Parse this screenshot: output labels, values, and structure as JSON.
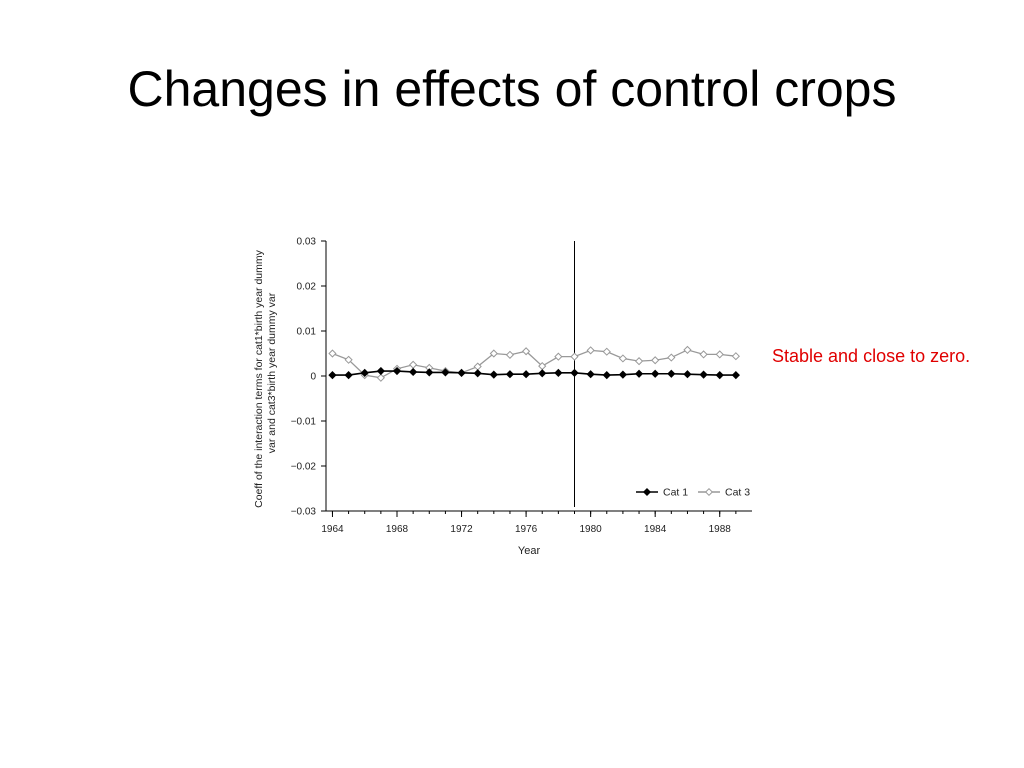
{
  "slide": {
    "title": "Changes in effects of control crops",
    "annotation": "Stable and close to zero."
  },
  "chart_data": {
    "type": "line",
    "title": "",
    "xlabel": "Year",
    "ylabel_lines": [
      "Coeff of the interaction terms for cat1*birth year dummy",
      "var and cat3*birth year dummy var"
    ],
    "ylim": [
      -0.03,
      0.03
    ],
    "xlim": [
      1963.6,
      1990
    ],
    "yticks": [
      {
        "value": 0.03,
        "label": "0.03"
      },
      {
        "value": 0.02,
        "label": "0.02"
      },
      {
        "value": 0.01,
        "label": "0.01"
      },
      {
        "value": 0,
        "label": "0"
      },
      {
        "value": -0.01,
        "label": "−0.01"
      },
      {
        "value": -0.02,
        "label": "−0.02"
      },
      {
        "value": -0.03,
        "label": "−0.03"
      }
    ],
    "xticks": [
      {
        "value": 1964,
        "label": "1964"
      },
      {
        "value": 1968,
        "label": "1968"
      },
      {
        "value": 1972,
        "label": "1972"
      },
      {
        "value": 1976,
        "label": "1976"
      },
      {
        "value": 1980,
        "label": "1980"
      },
      {
        "value": 1984,
        "label": "1984"
      },
      {
        "value": 1988,
        "label": "1988"
      }
    ],
    "vertical_line_x": 1979,
    "grid": false,
    "legend_position": "bottom-right",
    "x": [
      1964,
      1965,
      1966,
      1967,
      1968,
      1969,
      1970,
      1971,
      1972,
      1973,
      1974,
      1975,
      1976,
      1977,
      1978,
      1979,
      1980,
      1981,
      1982,
      1983,
      1984,
      1985,
      1986,
      1987,
      1988,
      1989
    ],
    "series": [
      {
        "name": "Cat 1",
        "marker": "filled-diamond",
        "color": "#000000",
        "values": [
          0.0002,
          0.0002,
          0.0007,
          0.0011,
          0.0011,
          0.0009,
          0.0008,
          0.0008,
          0.0007,
          0.0006,
          0.0003,
          0.0004,
          0.0004,
          0.0006,
          0.0007,
          0.0007,
          0.0004,
          0.0002,
          0.0003,
          0.0005,
          0.0005,
          0.0005,
          0.0004,
          0.0003,
          0.0002,
          0.0002
        ]
      },
      {
        "name": "Cat 3",
        "marker": "open-diamond",
        "color": "#999999",
        "values": [
          0.005,
          0.0036,
          0.0002,
          -0.0004,
          0.0016,
          0.0025,
          0.0018,
          0.0011,
          0.0007,
          0.0021,
          0.005,
          0.0047,
          0.0055,
          0.0022,
          0.0043,
          0.0043,
          0.0057,
          0.0054,
          0.0039,
          0.0033,
          0.0035,
          0.0041,
          0.0058,
          0.0048,
          0.0048,
          0.0044
        ]
      }
    ]
  }
}
